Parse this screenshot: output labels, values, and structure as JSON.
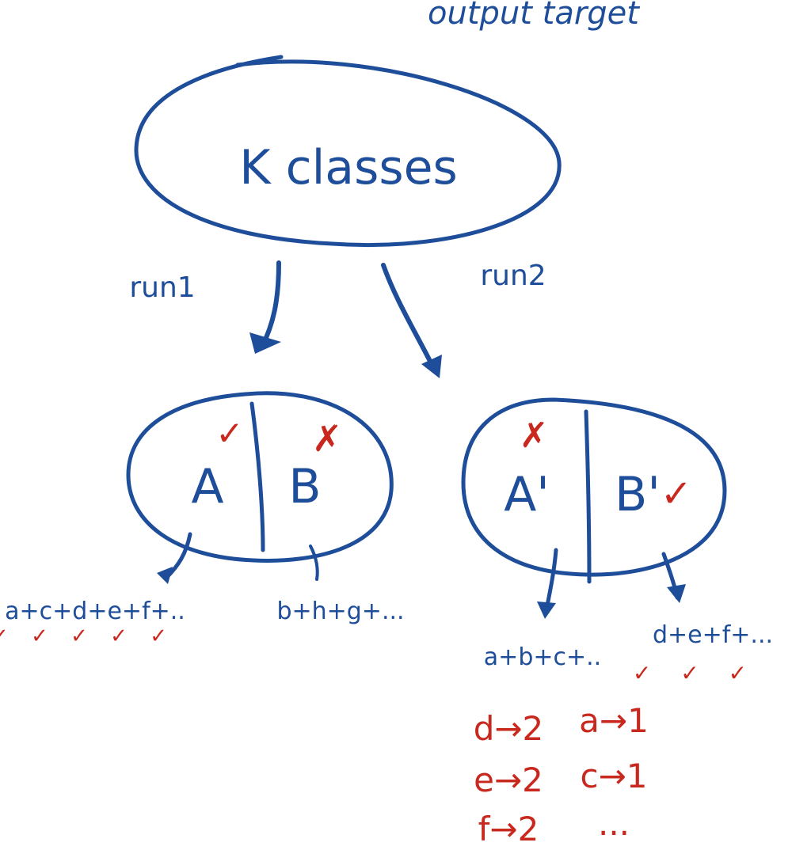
{
  "header": {
    "label": "output target"
  },
  "root": {
    "label": "K classes"
  },
  "edges": {
    "left_label": "run1",
    "right_label": "run2"
  },
  "run1": {
    "part_a": "A",
    "part_b": "B",
    "a_mark": "✓",
    "b_mark": "✗",
    "a_sum": "a+c+d+e+f+..",
    "a_sum_checks": "✓ ✓ ✓ ✓ ✓",
    "b_sum": "b+h+g+..."
  },
  "run2": {
    "part_a": "A'",
    "part_b": "B'",
    "a_mark": "✗",
    "b_mark": "✓",
    "a_sum": "a+b+c+..",
    "b_sum": "d+e+f+...",
    "b_sum_checks": "✓ ✓ ✓"
  },
  "mapping": {
    "rows": [
      {
        "left": "d→2",
        "right": "a→1"
      },
      {
        "left": "e→2",
        "right": "c→1"
      },
      {
        "left": "f→2",
        "right": "..."
      }
    ]
  },
  "colors": {
    "ink_blue": "#1e4d9a",
    "ink_red": "#c8281e",
    "background": "#ffffff"
  }
}
